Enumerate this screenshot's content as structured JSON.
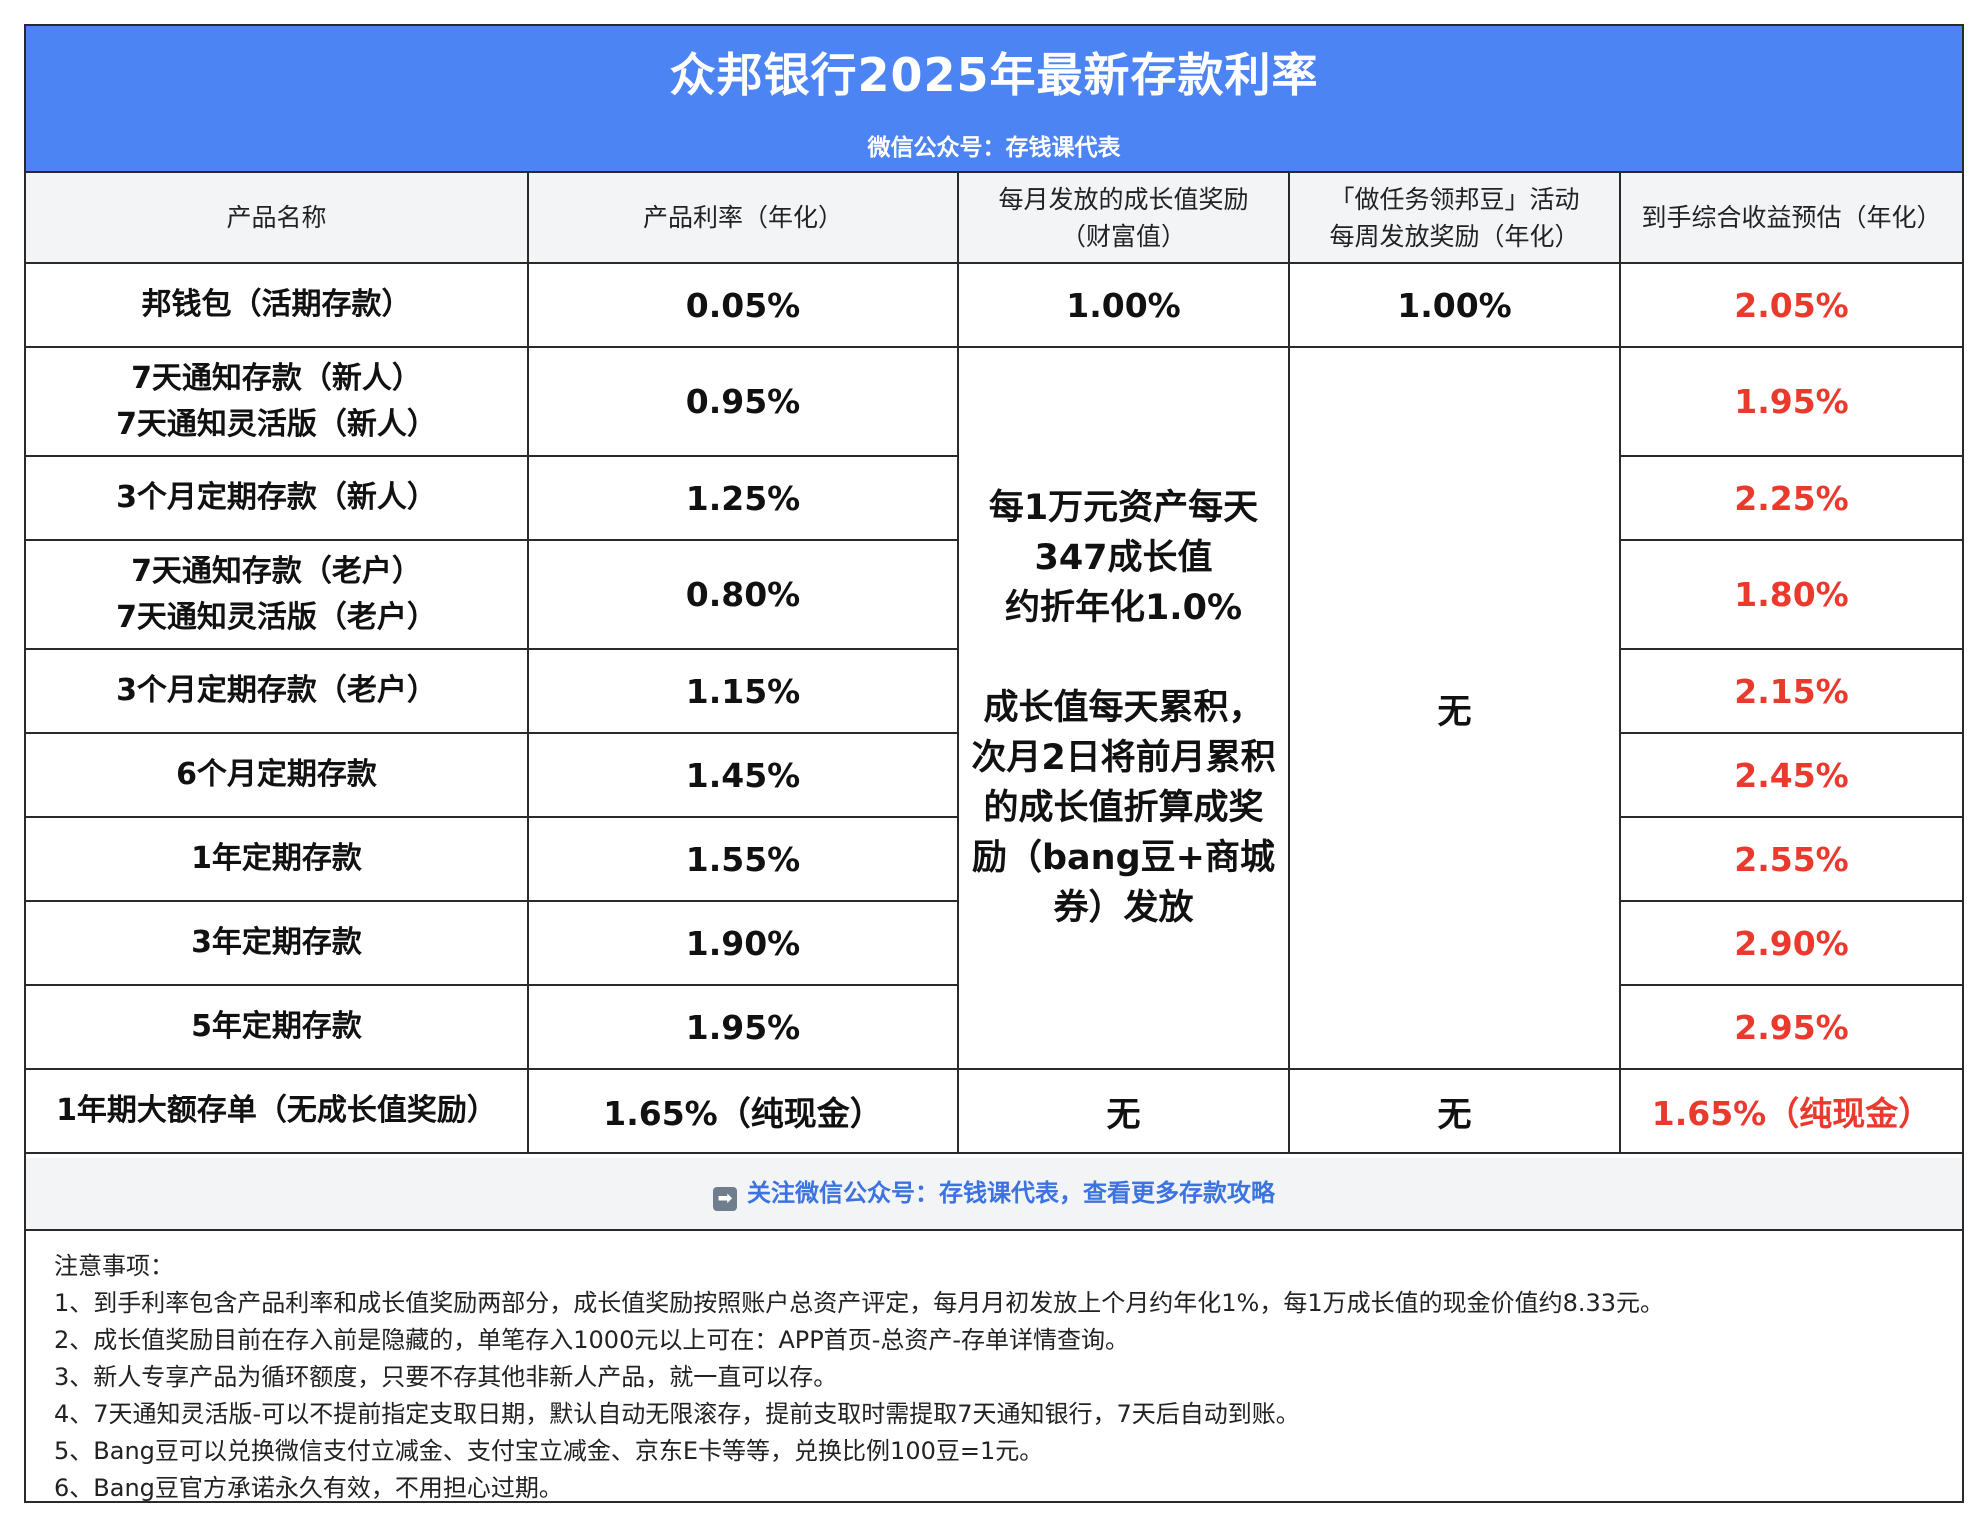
{
  "header": {
    "title": "众邦银行2025年最新存款利率",
    "subtitle": "微信公众号：存钱课代表"
  },
  "columns": {
    "name": "产品名称",
    "rate": "产品利率（年化）",
    "growth_line1": "每月发放的成长值奖励",
    "growth_line2": "（财富值）",
    "task_line1": "「做任务领邦豆」活动",
    "task_line2": "每周发放奖励（年化）",
    "total": "到手综合收益预估（年化）"
  },
  "rows": [
    {
      "name": "邦钱包（活期存款）",
      "rate": "0.05%",
      "growth": "1.00%",
      "task": "1.00%",
      "total": "2.05%"
    },
    {
      "name_line1": "7天通知存款（新人）",
      "name_line2": "7天通知灵活版（新人）",
      "rate": "0.95%",
      "total": "1.95%"
    },
    {
      "name": "3个月定期存款（新人）",
      "rate": "1.25%",
      "total": "2.25%"
    },
    {
      "name_line1": "7天通知存款（老户）",
      "name_line2": "7天通知灵活版（老户）",
      "rate": "0.80%",
      "total": "1.80%"
    },
    {
      "name": "3个月定期存款（老户）",
      "rate": "1.15%",
      "total": "2.15%"
    },
    {
      "name": "6个月定期存款",
      "rate": "1.45%",
      "total": "2.45%"
    },
    {
      "name": "1年定期存款",
      "rate": "1.55%",
      "total": "2.55%"
    },
    {
      "name": "3年定期存款",
      "rate": "1.90%",
      "total": "2.90%"
    },
    {
      "name": "5年定期存款",
      "rate": "1.95%",
      "total": "2.95%"
    },
    {
      "name": "1年期大额存单（无成长值奖励）",
      "rate": "1.65%（纯现金）",
      "growth": "无",
      "task": "无",
      "total": "1.65%（纯现金）"
    }
  ],
  "merged_growth": {
    "p1_line1": "每1万元资产每天",
    "p1_line2": "347成长值",
    "p1_line3": "约折年化1.0%",
    "p2_line1": "成长值每天累积，",
    "p2_line2": "次月2日将前月累积",
    "p2_line3": "的成长值折算成奖",
    "p2_line4": "励（bang豆+商城",
    "p2_line5": "券）发放"
  },
  "merged_task": "无",
  "promo": {
    "icon": "right-arrow-icon",
    "text": "关注微信公众号：存钱课代表，查看更多存款攻略"
  },
  "notes": {
    "title": "注意事项：",
    "items": [
      "1、到手利率包含产品利率和成长值奖励两部分，成长值奖励按照账户总资产评定，每月月初发放上个月约年化1%，每1万成长值的现金价值约8.33元。",
      "2、成长值奖励目前在存入前是隐藏的，单笔存入1000元以上可在：APP首页-总资产-存单详情查询。",
      "3、新人专享产品为循环额度，只要不存其他非新人产品，就一直可以存。",
      "4、7天通知灵活版-可以不提前指定支取日期，默认自动无限滚存，提前支取时需提取7天通知银行，7天后自动到账。",
      "5、Bang豆可以兑换微信支付立减金、支付宝立减金、京东E卡等等，兑换比例100豆=1元。",
      "6、Bang豆官方承诺永久有效，不用担心过期。"
    ]
  },
  "colors": {
    "header_bg": "#4d84f3",
    "highlight_red": "#ea3a2e",
    "promo_blue": "#3d73e0"
  }
}
